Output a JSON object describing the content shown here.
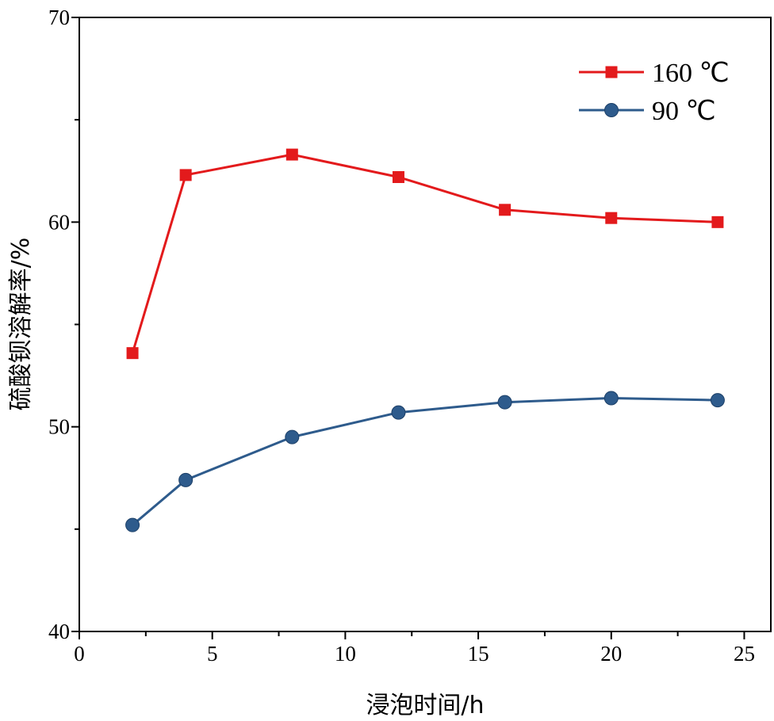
{
  "chart_data": {
    "type": "line",
    "xlabel": "浸泡时间/h",
    "ylabel": "硫酸钡溶解率/%",
    "xlim": [
      0,
      26
    ],
    "ylim": [
      40,
      70
    ],
    "x_ticks": [
      0,
      5,
      10,
      15,
      20,
      25
    ],
    "y_ticks": [
      40,
      50,
      60,
      70
    ],
    "grid": false,
    "legend_position": "top-right",
    "series": [
      {
        "name": "160 ℃",
        "color": "#e31a1c",
        "marker": "square",
        "x": [
          2,
          4,
          8,
          12,
          16,
          20,
          24
        ],
        "y": [
          53.6,
          62.3,
          63.3,
          62.2,
          60.6,
          60.2,
          60.0
        ]
      },
      {
        "name": "90 ℃",
        "color": "#2e5b8c",
        "marker": "circle",
        "x": [
          2,
          4,
          8,
          12,
          16,
          20,
          24
        ],
        "y": [
          45.2,
          47.4,
          49.5,
          50.7,
          51.2,
          51.4,
          51.3
        ]
      }
    ]
  }
}
